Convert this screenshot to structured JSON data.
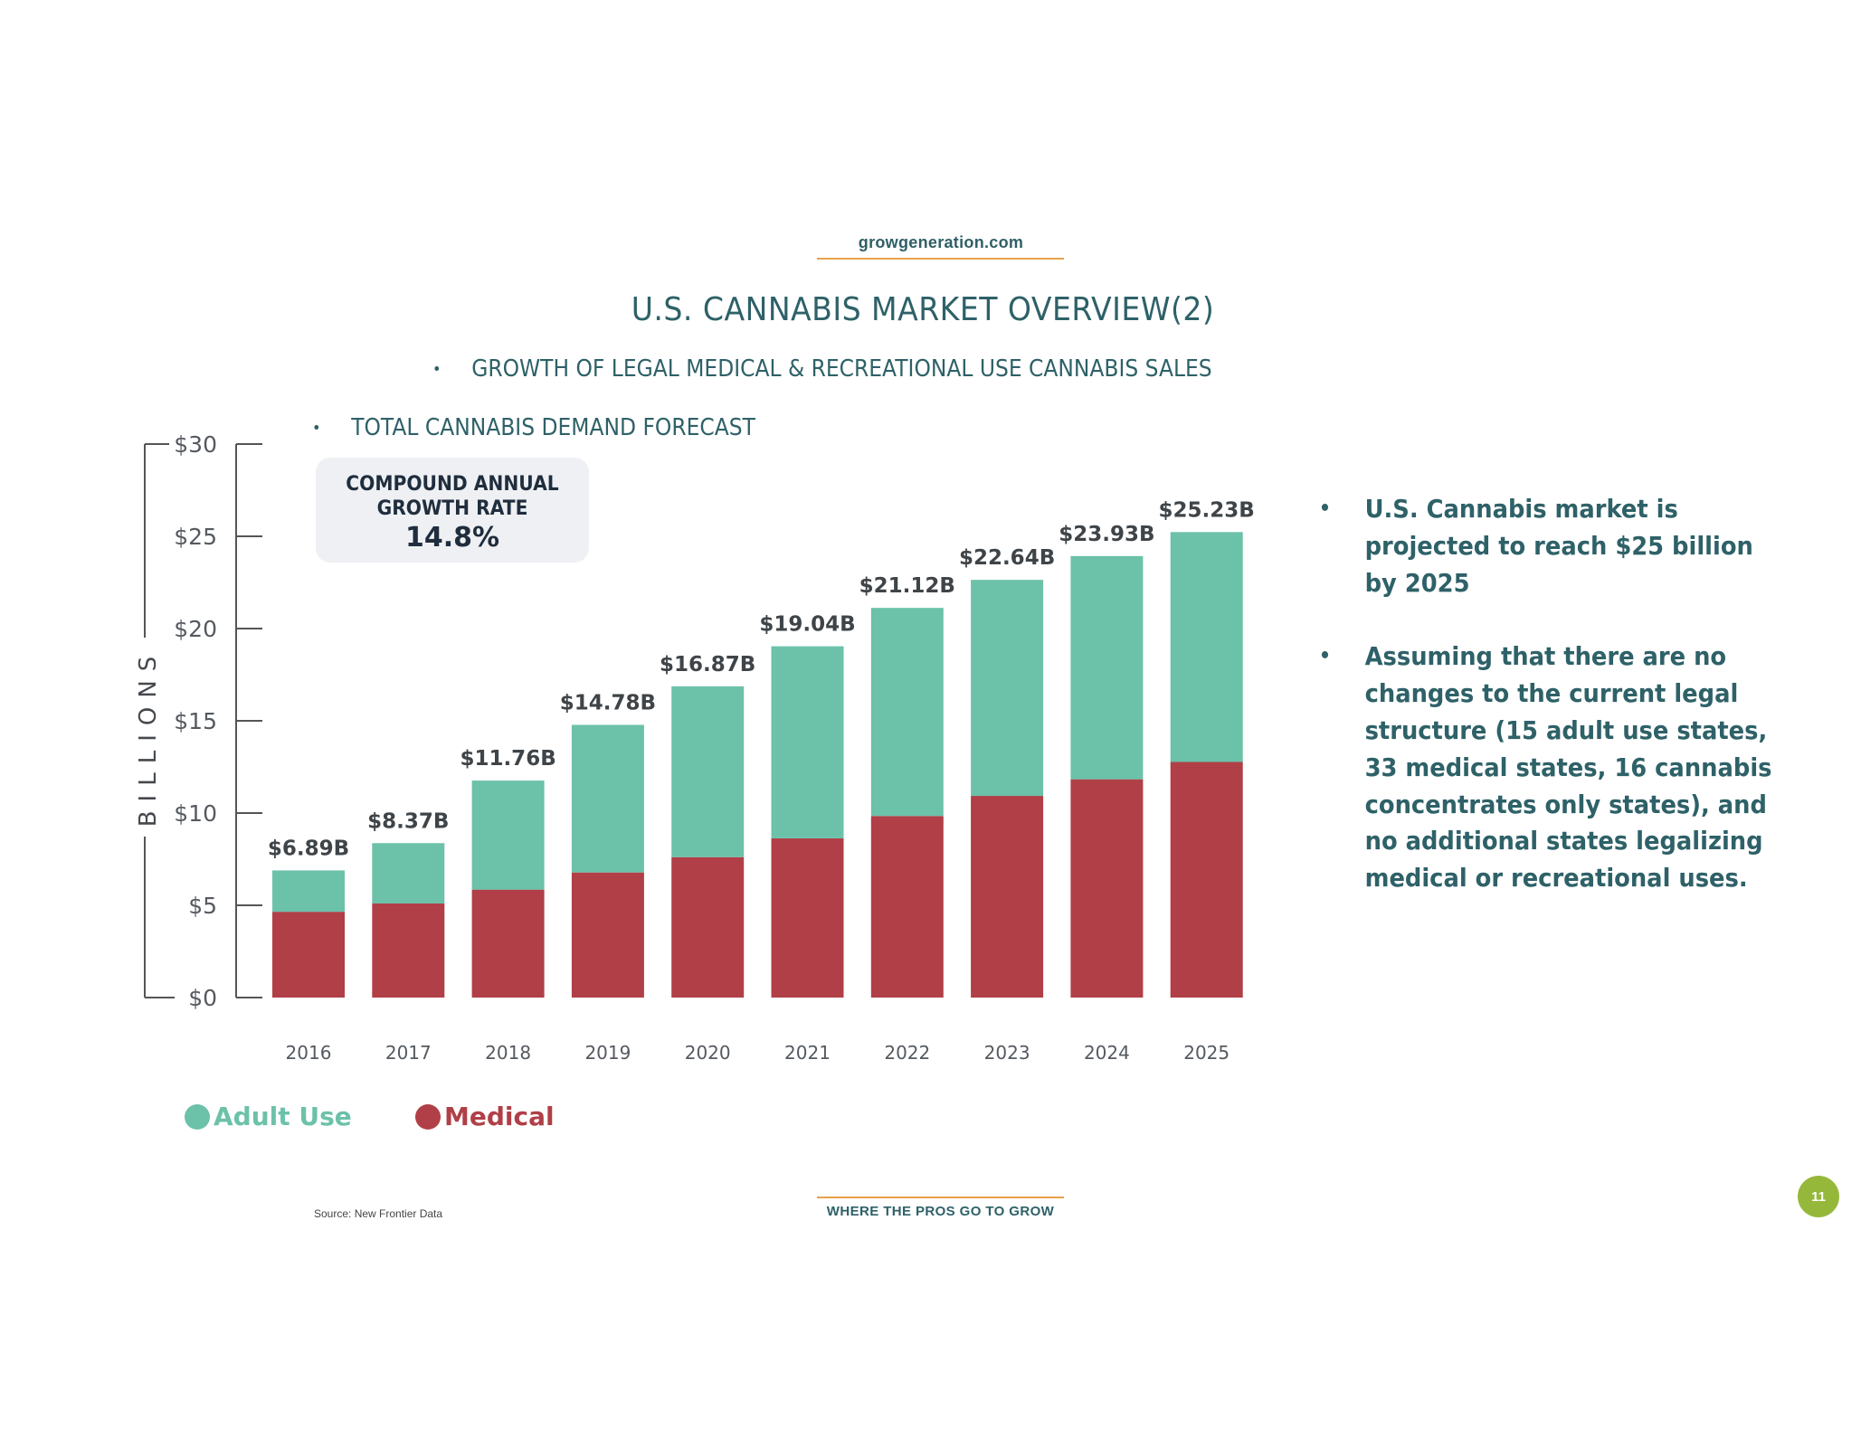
{
  "header": {
    "site_url": "growgeneration.com",
    "title": "U.S. CANNABIS MARKET OVERVIEW(2)",
    "subtitles": [
      "GROWTH OF LEGAL MEDICAL & RECREATIONAL USE CANNABIS SALES",
      "TOTAL CANNABIS DEMAND FORECAST"
    ],
    "bullet_glyph": "•"
  },
  "callout": {
    "line1": "COMPOUND ANNUAL",
    "line2": "GROWTH RATE",
    "value": "14.8%"
  },
  "right_bullets": [
    "U.S. Cannabis market is projected to  reach $25 billion by 2025",
    "Assuming  that there are no changes to the  current legal structure (15 adult use states, 33 medical states, 16 cannabis  concentrates only states), and no  additional states legalizing medical or recreational uses."
  ],
  "footer": {
    "source": "Source: New Frontier Data",
    "tagline": "WHERE THE PROS GO TO GROW",
    "page_number": "11"
  },
  "colors": {
    "text_primary": "#2e6168",
    "adult_use": "#6cc1a9",
    "medical": "#b03f47",
    "accent_rule": "#e8a24a",
    "page_badge": "#96b83a",
    "callout_bg": "#eef0f3"
  },
  "chart_data": {
    "type": "bar",
    "stacked": true,
    "title": "TOTAL CANNABIS DEMAND FORECAST",
    "xlabel": "",
    "ylabel": "BILLIONS",
    "categories": [
      "2016",
      "2017",
      "2018",
      "2019",
      "2020",
      "2021",
      "2022",
      "2023",
      "2024",
      "2025"
    ],
    "series": [
      {
        "name": "Medical",
        "color": "#b03f47",
        "values": [
          4.65,
          5.1,
          5.85,
          6.78,
          7.61,
          8.63,
          9.84,
          10.93,
          11.83,
          12.77
        ]
      },
      {
        "name": "Adult Use",
        "color": "#6cc1a9",
        "values": [
          2.24,
          3.27,
          5.91,
          8.0,
          9.26,
          10.41,
          11.28,
          11.71,
          12.1,
          12.46
        ]
      }
    ],
    "totals": [
      6.89,
      8.37,
      11.76,
      14.78,
      16.87,
      19.04,
      21.12,
      22.64,
      23.93,
      25.23
    ],
    "data_labels": [
      "$6.89B",
      "$8.37B",
      "$11.76B",
      "$14.78B",
      "$16.87B",
      "$19.04B",
      "$21.12B",
      "$22.64B",
      "$23.93B",
      "$25.23B"
    ],
    "yticks": [
      0,
      5,
      10,
      15,
      20,
      25,
      30
    ],
    "ytick_labels": [
      "$0",
      "$5",
      "$10",
      "$15",
      "$20",
      "$25",
      "$30"
    ],
    "ylim": [
      0,
      30
    ],
    "grid": false,
    "legend": {
      "position": "bottom-left",
      "entries": [
        "Adult Use",
        "Medical"
      ]
    },
    "annotation": "COMPOUND ANNUAL GROWTH RATE 14.8%",
    "source": "New Frontier Data"
  }
}
